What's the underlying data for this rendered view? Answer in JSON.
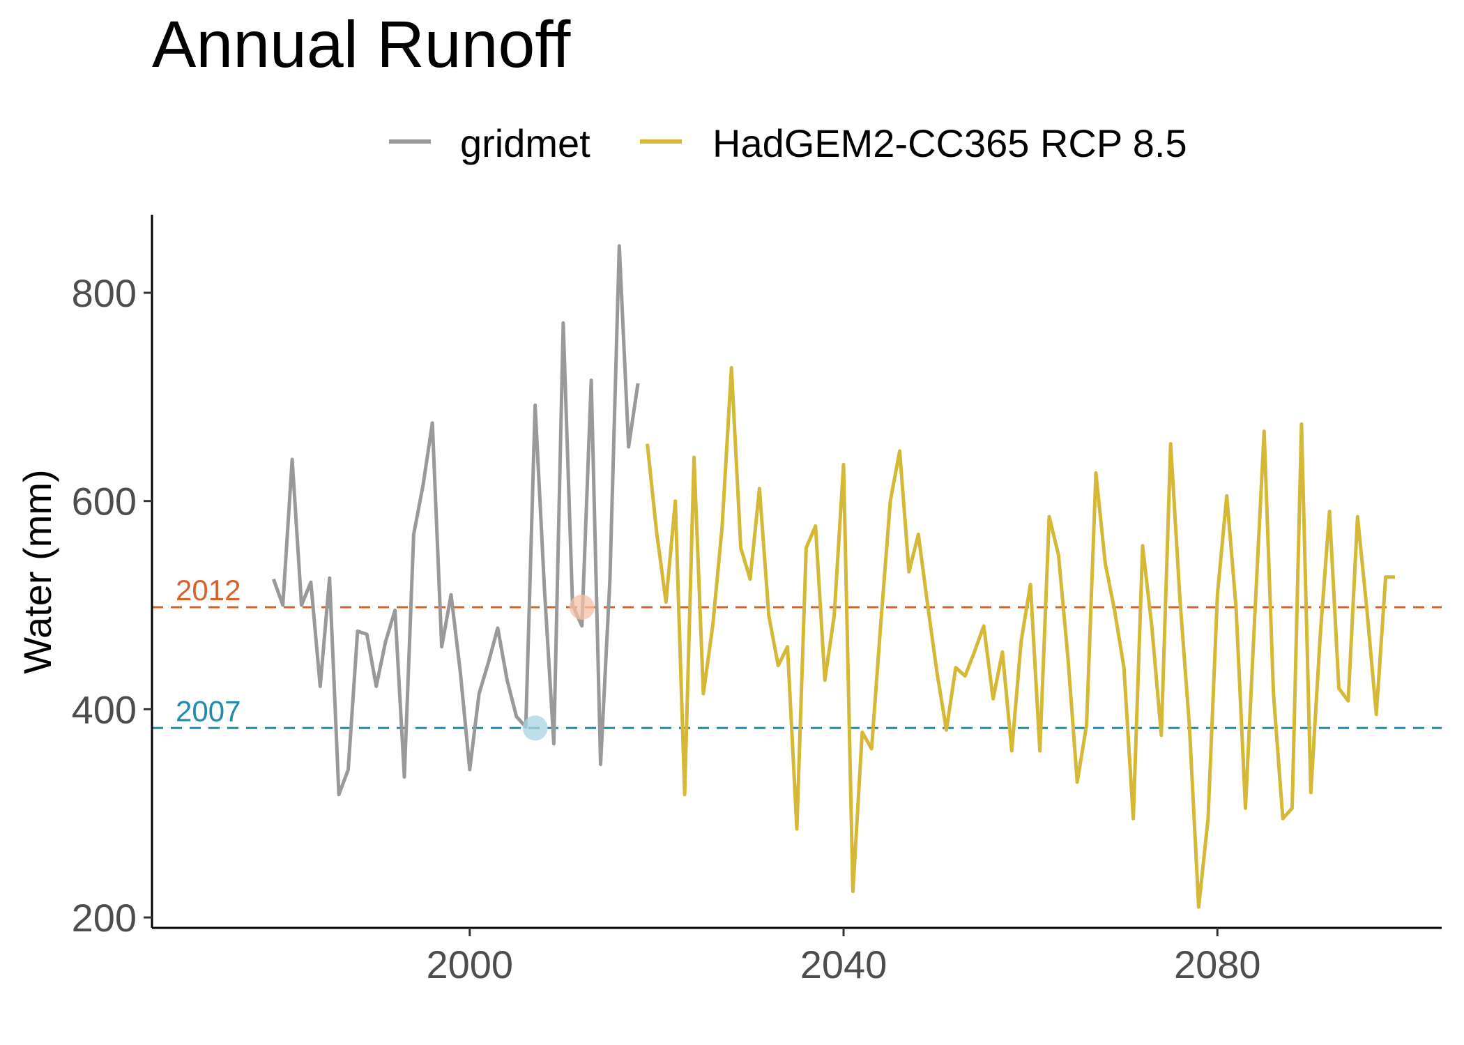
{
  "chart_data": {
    "type": "line",
    "title": "Annual Runoff",
    "xlabel": "",
    "ylabel": "Water (mm)",
    "xlim": [
      1966,
      2104
    ],
    "ylim": [
      190,
      875
    ],
    "x_ticks": [
      2000,
      2040,
      2080
    ],
    "y_ticks": [
      200,
      400,
      600,
      800
    ],
    "grid": false,
    "legend_position": "top",
    "series": [
      {
        "name": "gridmet",
        "color": "#999999",
        "x": [
          1979,
          1980,
          1981,
          1982,
          1983,
          1984,
          1985,
          1986,
          1987,
          1988,
          1989,
          1990,
          1991,
          1992,
          1993,
          1994,
          1995,
          1996,
          1997,
          1998,
          1999,
          2000,
          2001,
          2002,
          2003,
          2004,
          2005,
          2006,
          2007,
          2008,
          2009,
          2010,
          2011,
          2012,
          2013,
          2014,
          2015,
          2016,
          2017,
          2018
        ],
        "y": [
          525,
          500,
          640,
          500,
          522,
          422,
          526,
          318,
          342,
          475,
          472,
          422,
          465,
          495,
          335,
          568,
          615,
          675,
          460,
          510,
          435,
          342,
          415,
          445,
          478,
          428,
          393,
          383,
          692,
          515,
          367,
          771,
          500,
          480,
          716,
          347,
          525,
          845,
          652,
          713
        ]
      },
      {
        "name": "HadGEM2-CC365 RCP 8.5",
        "color": "#d4b836",
        "x": [
          2019,
          2020,
          2021,
          2022,
          2023,
          2024,
          2025,
          2026,
          2027,
          2028,
          2029,
          2030,
          2031,
          2032,
          2033,
          2034,
          2035,
          2036,
          2037,
          2038,
          2039,
          2040,
          2041,
          2042,
          2043,
          2044,
          2045,
          2046,
          2047,
          2048,
          2049,
          2050,
          2051,
          2052,
          2053,
          2054,
          2055,
          2056,
          2057,
          2058,
          2059,
          2060,
          2061,
          2062,
          2063,
          2064,
          2065,
          2066,
          2067,
          2068,
          2069,
          2070,
          2071,
          2072,
          2073,
          2074,
          2075,
          2076,
          2077,
          2078,
          2079,
          2080,
          2081,
          2082,
          2083,
          2084,
          2085,
          2086,
          2087,
          2088,
          2089,
          2090,
          2091,
          2092,
          2093,
          2094,
          2095,
          2096,
          2097,
          2098,
          2099
        ],
        "y": [
          655,
          570,
          503,
          600,
          318,
          642,
          415,
          480,
          575,
          728,
          555,
          525,
          612,
          490,
          442,
          460,
          285,
          555,
          576,
          428,
          490,
          635,
          225,
          378,
          362,
          485,
          600,
          648,
          532,
          568,
          500,
          435,
          380,
          440,
          432,
          455,
          480,
          410,
          455,
          360,
          465,
          520,
          360,
          585,
          548,
          450,
          330,
          385,
          627,
          540,
          495,
          440,
          295,
          557,
          478,
          375,
          655,
          505,
          385,
          210,
          295,
          510,
          605,
          497,
          305,
          490,
          667,
          415,
          295,
          305,
          674,
          320,
          470,
          590,
          420,
          408,
          585,
          495,
          395,
          527,
          527
        ]
      }
    ],
    "reference_lines": [
      {
        "label": "2012",
        "y": 498,
        "color": "#d9622b"
      },
      {
        "label": "2007",
        "y": 382,
        "color": "#1f8aad"
      }
    ],
    "highlight_points": [
      {
        "x": 2012,
        "y": 498,
        "color": "#f4c2a8"
      },
      {
        "x": 2007,
        "y": 382,
        "color": "#a8d4e3"
      }
    ]
  }
}
